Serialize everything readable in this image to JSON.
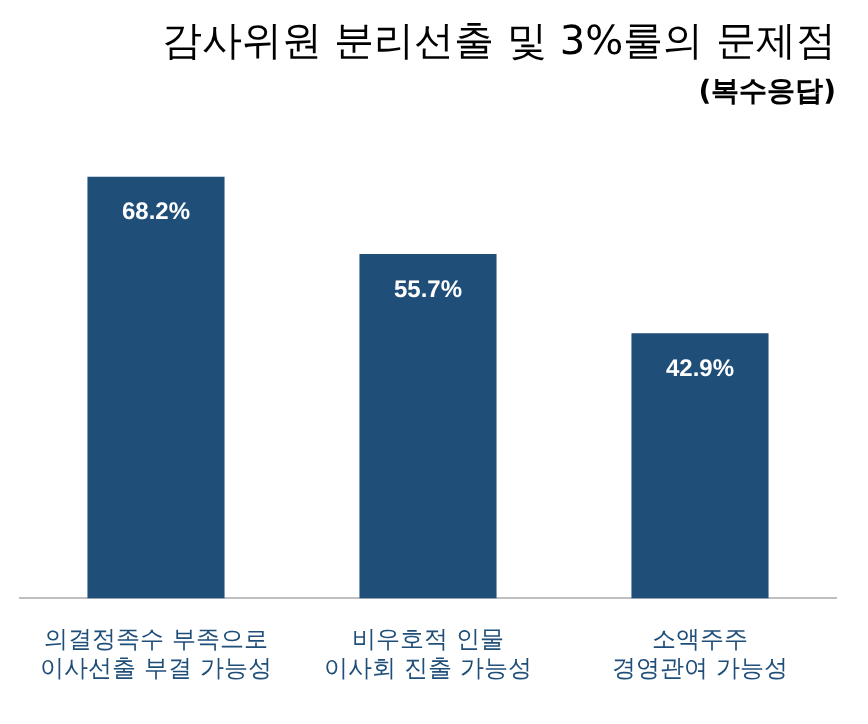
{
  "chart_data": {
    "type": "bar",
    "title": "감사위원 분리선출 및 3%룰의 문제점",
    "subtitle": "(복수응답)",
    "categories": [
      "의결정족수 부족으로\n이사선출 부결 가능성",
      "비우호적 인물\n이사회 진출 가능성",
      "소액주주\n경영관여 가능성"
    ],
    "values": [
      68.2,
      55.7,
      42.9
    ],
    "value_labels": [
      "68.2%",
      "55.7%",
      "42.9%"
    ],
    "color": "#1f4e79",
    "grid": false,
    "legend": false
  }
}
